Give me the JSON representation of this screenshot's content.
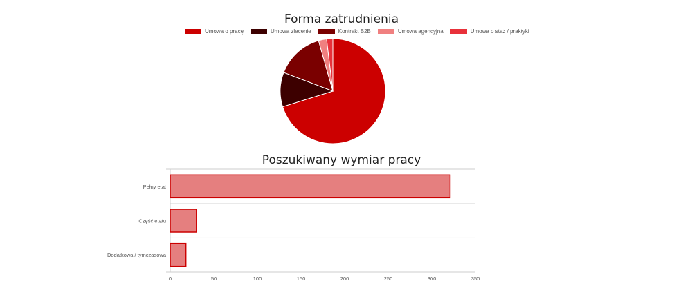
{
  "chart_data": [
    {
      "type": "pie",
      "title": "Forma zatrudnienia",
      "legend_position": "top",
      "categories": [
        "Umowa o pracę",
        "Umowa zlecenie",
        "Kontrakt B2B",
        "Umowa agencyjna",
        "Umowa o staż / praktyki"
      ],
      "values": [
        70.2,
        10.6,
        14.8,
        2.5,
        1.9
      ],
      "colors": [
        "#cc0000",
        "#3d0000",
        "#7a0000",
        "#f08080",
        "#e8313a"
      ]
    },
    {
      "type": "bar",
      "orientation": "horizontal",
      "title": "Poszukiwany wymiar pracy",
      "categories": [
        "Pełny etat",
        "Część etatu",
        "Dodatkowa / tymczasowa"
      ],
      "values": [
        321,
        30,
        18
      ],
      "xlim": [
        0,
        350
      ],
      "xticks": [
        "0",
        "50",
        "100",
        "150",
        "200",
        "250",
        "300",
        "350"
      ],
      "fill_color": "#e57f7f",
      "border_color": "#cc0000",
      "grid": true
    }
  ]
}
